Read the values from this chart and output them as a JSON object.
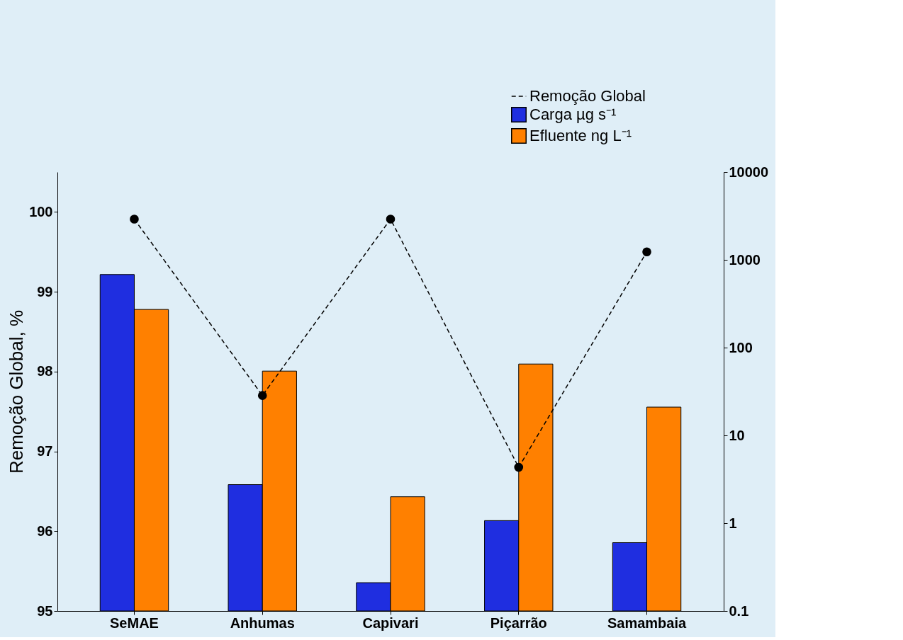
{
  "chart_data": {
    "type": "bar",
    "categories": [
      "SeMAE",
      "Anhumas",
      "Capivari",
      "Piçarrão",
      "Samambaia"
    ],
    "ylabel": "Remoção Global, %",
    "ylim": [
      95,
      100.5
    ],
    "yticks": [
      95,
      96,
      97,
      98,
      99,
      100
    ],
    "y2lim": [
      0.1,
      10000
    ],
    "y2ticks": [
      0.1,
      1,
      10,
      100,
      1000,
      10000
    ],
    "log": "y2",
    "legend": "top right",
    "grid": false,
    "marker": "circle",
    "line_style": "dashed",
    "series": [
      {
        "name": "Remoção Global",
        "type": "line",
        "color": "#000000",
        "values": [
          99.91,
          97.7,
          99.91,
          96.8,
          99.5
        ]
      },
      {
        "name": "Carga µg s⁻¹",
        "axis": "y2",
        "color": "#1f2ee0",
        "values": [
          680,
          2.75,
          0.21,
          1.07,
          0.6
        ]
      },
      {
        "name": "Efluente ng L⁻¹",
        "axis": "y2",
        "color": "#ff8000",
        "values": [
          272,
          54,
          2.0,
          65,
          21
        ]
      }
    ]
  }
}
